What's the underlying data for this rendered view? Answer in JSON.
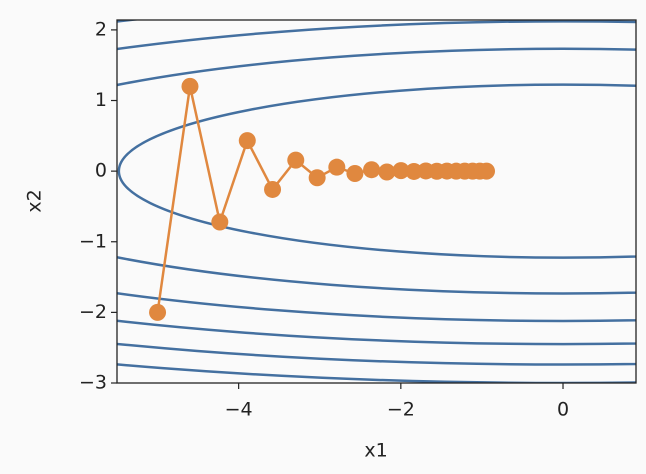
{
  "chart_data": {
    "type": "contour_trajectory",
    "xlabel": "x1",
    "ylabel": "x2",
    "xlim": [
      -5.5,
      0.9
    ],
    "ylim": [
      -3,
      2.14
    ],
    "xticks": [
      {
        "value": -4,
        "label": "−4"
      },
      {
        "value": -2,
        "label": "−2"
      },
      0
    ],
    "yticks": [
      {
        "value": -3,
        "label": "−3"
      },
      {
        "value": -2,
        "label": "−2"
      },
      {
        "value": -1,
        "label": "−1"
      },
      0,
      1,
      2
    ],
    "contours": {
      "color": "#4470a0",
      "x1_coef": 0.1,
      "x2_coef": 2,
      "levels": [
        3,
        6,
        9,
        12,
        15,
        18
      ]
    },
    "series": [
      {
        "color": "#e0883f",
        "x": [
          -5,
          -4.6,
          -4.232,
          -3.8934,
          -3.582,
          -3.2954,
          -3.0318,
          -2.7893,
          -2.5661,
          -2.3608,
          -2.172,
          -1.9982,
          -1.8383,
          -1.6913,
          -1.556,
          -1.4315,
          -1.317,
          -1.2116,
          -1.1147,
          -1.0255,
          -0.9435
        ],
        "values": [
          -2,
          1.2,
          -0.72,
          0.432,
          -0.2592,
          0.15552,
          -0.093312,
          0.055987,
          -0.033592,
          0.020155,
          -0.012093,
          0.0072559,
          -0.0043535,
          0.0026121,
          -0.0015673,
          0.00094036,
          -0.00056422,
          0.00033853,
          -0.00020312,
          0.00012187,
          -7.3e-05
        ]
      }
    ]
  }
}
